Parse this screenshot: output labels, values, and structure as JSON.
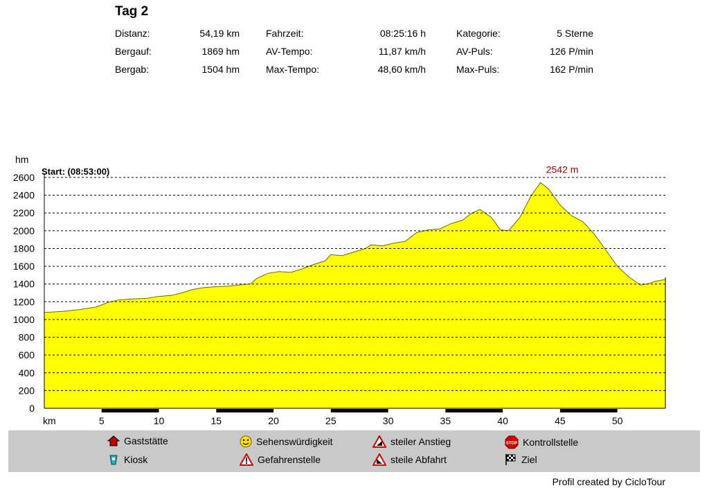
{
  "title": "Tag 2",
  "stats": {
    "col1": [
      {
        "label": "Distanz:",
        "value": "54,19 km"
      },
      {
        "label": "Bergauf:",
        "value": "1869 hm"
      },
      {
        "label": "Bergab:",
        "value": "1504 hm"
      }
    ],
    "col2": [
      {
        "label": "Fahrzeit:",
        "value": "08:25:16 h"
      },
      {
        "label": "AV-Tempo:",
        "value": "11,87 km/h"
      },
      {
        "label": "Max-Tempo:",
        "value": "48,60 km/h"
      }
    ],
    "col3": [
      {
        "label": "Kategorie:",
        "value": "5 Sterne"
      },
      {
        "label": "AV-Puls:",
        "value": "126 P/min"
      },
      {
        "label": "Max-Puls:",
        "value": "162 P/min"
      }
    ]
  },
  "chart_data": {
    "type": "area",
    "ylabel": "hm",
    "xlabel": "km",
    "start_label": "Start: (08:53:00)",
    "peak_label": "2542 m",
    "peak": {
      "x": 43.3,
      "y": 2542
    },
    "ylim": [
      0,
      2600
    ],
    "xlim": [
      0,
      54.19
    ],
    "yticks": [
      0,
      200,
      400,
      600,
      800,
      1000,
      1200,
      1400,
      1600,
      1800,
      2000,
      2200,
      2400,
      2600
    ],
    "xticks": [
      5,
      10,
      15,
      20,
      25,
      30,
      35,
      40,
      45,
      50
    ],
    "grid": true,
    "fill_color": "#ffff00",
    "line_color": "#6b6b00",
    "grid_color": "#000000",
    "peak_label_color": "#b00000",
    "x": [
      0,
      1.5,
      3,
      4.5,
      5.5,
      6.5,
      7.5,
      9,
      10,
      11,
      12,
      13,
      14,
      15,
      16,
      17,
      18,
      18.5,
      19.5,
      20.5,
      21.5,
      22.5,
      23.5,
      24.5,
      25,
      26,
      27,
      28,
      28.5,
      29.5,
      30.5,
      31.5,
      32.5,
      33.5,
      34.5,
      35.5,
      36.5,
      37.2,
      38,
      39,
      39.8,
      40.5,
      41.5,
      42.5,
      43.3,
      44,
      45,
      46,
      47,
      48,
      49,
      50,
      51,
      52,
      52.6,
      53.3,
      54.19
    ],
    "y": [
      1080,
      1090,
      1110,
      1140,
      1190,
      1220,
      1230,
      1240,
      1260,
      1270,
      1300,
      1340,
      1360,
      1370,
      1375,
      1390,
      1400,
      1460,
      1520,
      1540,
      1530,
      1570,
      1620,
      1660,
      1730,
      1720,
      1760,
      1800,
      1840,
      1830,
      1860,
      1880,
      1980,
      2010,
      2020,
      2080,
      2120,
      2190,
      2240,
      2150,
      2010,
      2000,
      2150,
      2400,
      2542,
      2470,
      2290,
      2170,
      2100,
      1960,
      1780,
      1600,
      1480,
      1390,
      1400,
      1430,
      1450
    ]
  },
  "legend": [
    {
      "label": "Gaststätte",
      "icon": "house-icon"
    },
    {
      "label": "Sehenswürdigkeit",
      "icon": "smiley-icon"
    },
    {
      "label": "steiler Anstieg",
      "icon": "warning-triangle-icon"
    },
    {
      "label": "Kontrollstelle",
      "icon": "stop-sign-icon"
    },
    {
      "label": "Kiosk",
      "icon": "cup-icon"
    },
    {
      "label": "Gefahrenstelle",
      "icon": "danger-triangle-icon"
    },
    {
      "label": "steile Abfahrt",
      "icon": "descent-triangle-icon"
    },
    {
      "label": "Ziel",
      "icon": "checkered-flag-icon"
    }
  ],
  "credit": "Profil created by CicloTour"
}
